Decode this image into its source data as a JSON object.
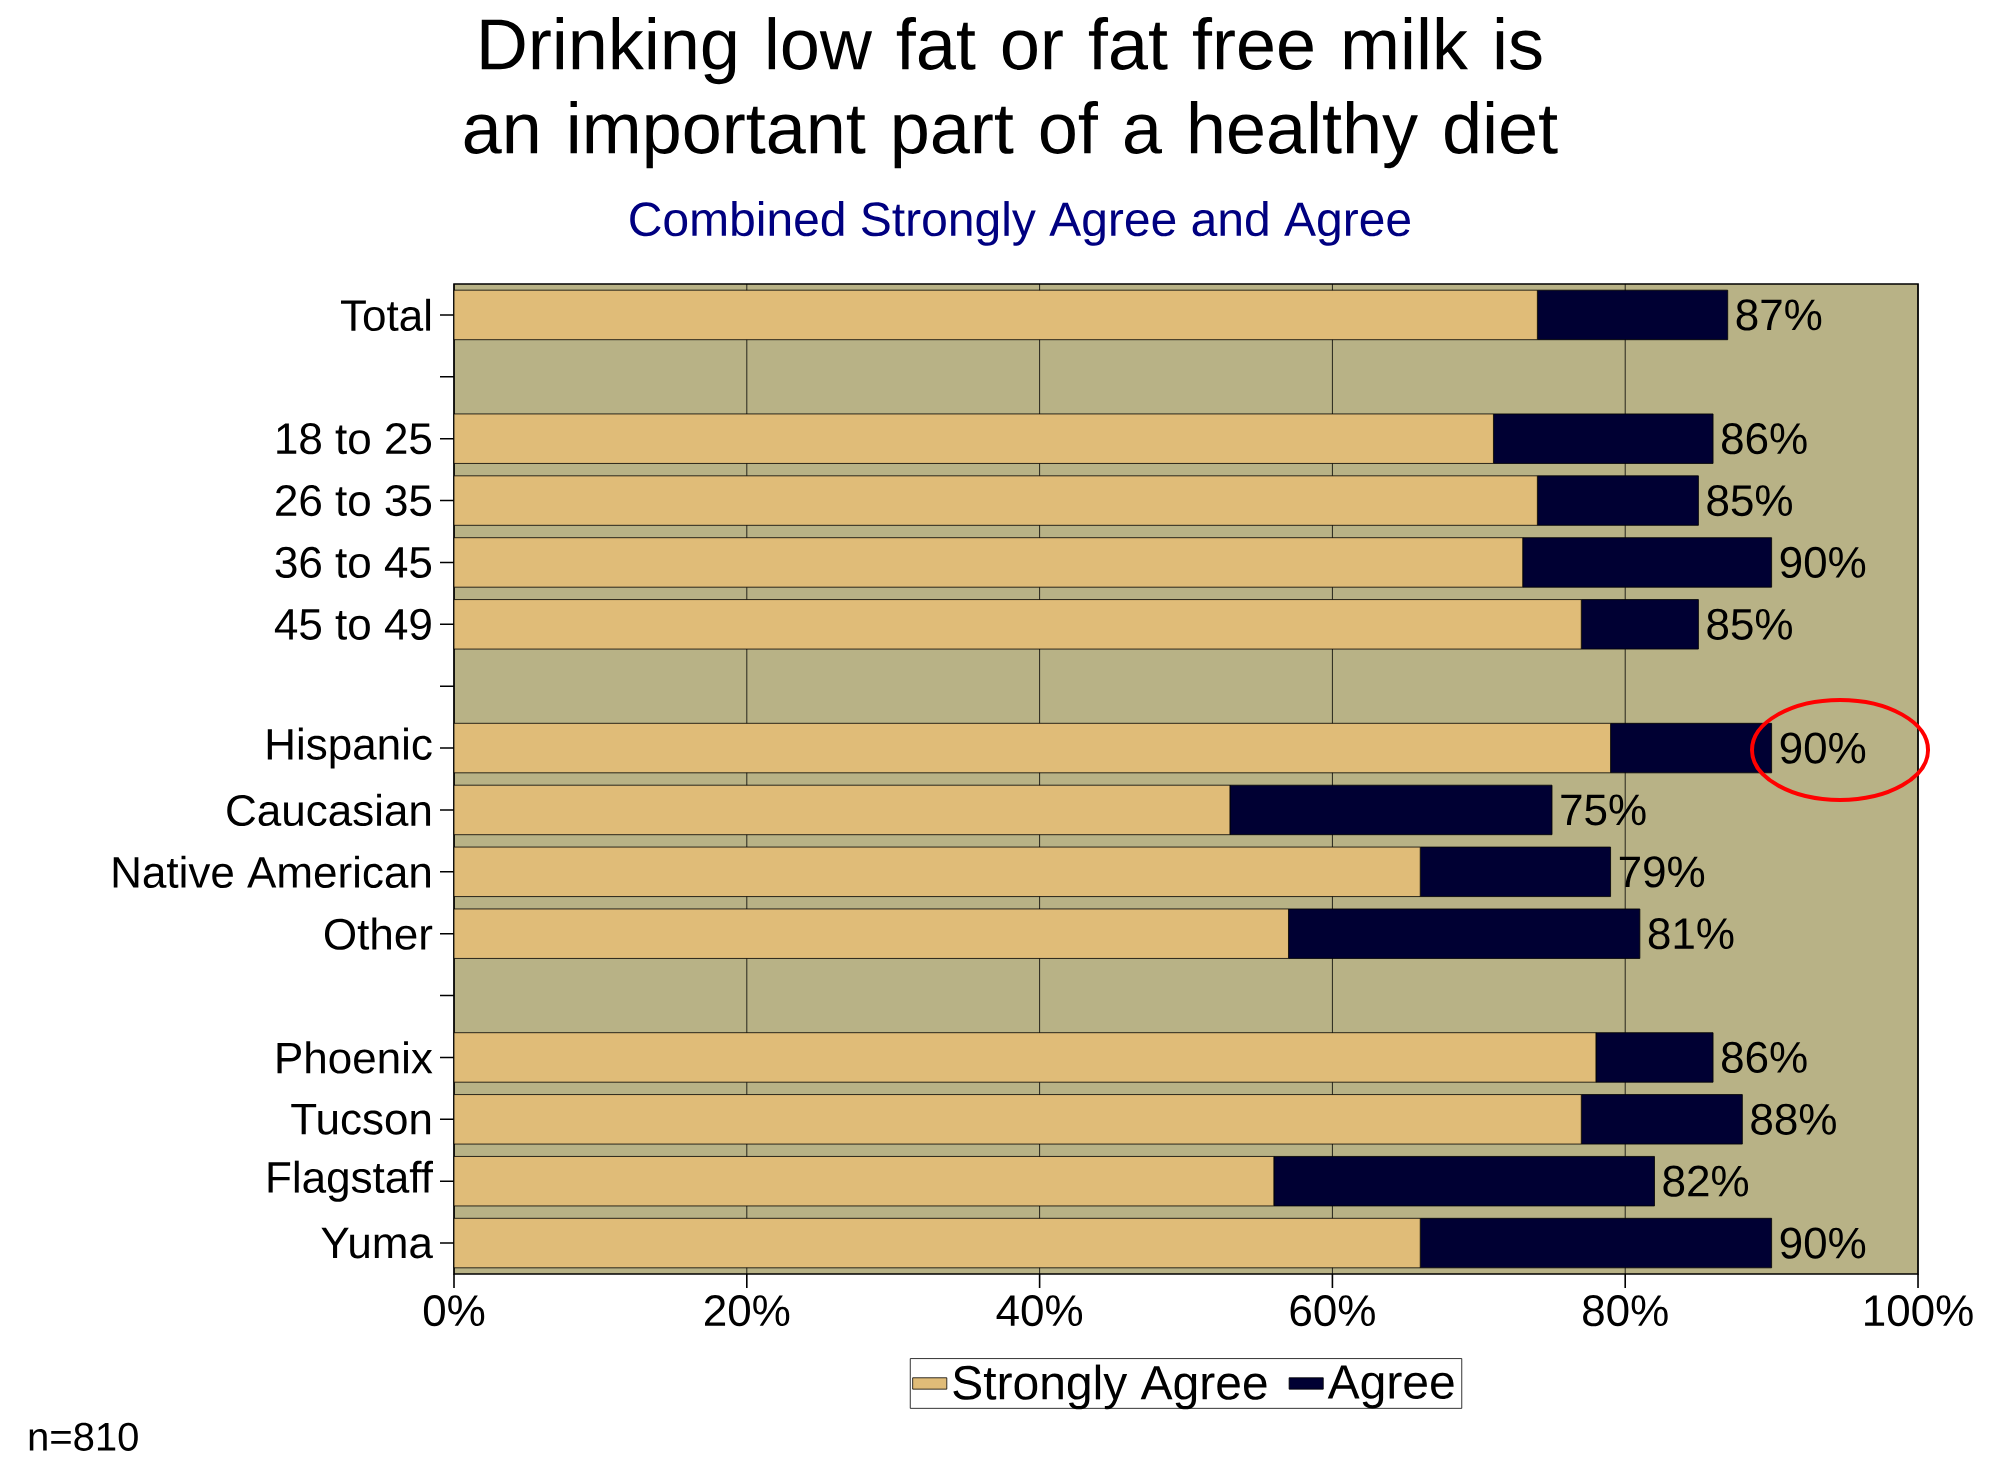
{
  "chart_data": {
    "type": "bar",
    "orientation": "horizontal",
    "stacked": true,
    "title": "Drinking low fat or fat free milk is an important part of a healthy diet",
    "subtitle": "Combined Strongly Agree and Agree",
    "categories": [
      "Total",
      null,
      "18 to 25",
      "26 to 35",
      "36 to 45",
      "45 to 49",
      null,
      "Hispanic",
      "Caucasian",
      "Native American",
      "Other",
      null,
      "Phoenix",
      "Tucson",
      "Flagstaff",
      "Yuma"
    ],
    "series": [
      {
        "name": "Strongly Agree",
        "color": "#e0bc78",
        "values": [
          74,
          null,
          71,
          74,
          73,
          77,
          null,
          79,
          53,
          66,
          57,
          null,
          78,
          77,
          56,
          66
        ]
      },
      {
        "name": "Agree",
        "color": "#000033",
        "values": [
          13,
          null,
          15,
          11,
          17,
          8,
          null,
          11,
          22,
          13,
          24,
          null,
          8,
          11,
          26,
          24
        ]
      }
    ],
    "totals": [
      "87%",
      null,
      "86%",
      "85%",
      "90%",
      "85%",
      null,
      "90%",
      "75%",
      "79%",
      "81%",
      null,
      "86%",
      "88%",
      "82%",
      "90%"
    ],
    "xlim": [
      0,
      100
    ],
    "xticks": [
      {
        "value": 0,
        "label": "0%"
      },
      {
        "value": 20,
        "label": "20%"
      },
      {
        "value": 40,
        "label": "40%"
      },
      {
        "value": 60,
        "label": "60%"
      },
      {
        "value": 80,
        "label": "80%"
      },
      {
        "value": 100,
        "label": "100%"
      }
    ],
    "grid": "x",
    "legend": "bottom",
    "bands": [
      {
        "axis": "x",
        "from": 0,
        "to": 100,
        "color": "#b8b286"
      }
    ],
    "annotations": [
      "n=810"
    ]
  }
}
